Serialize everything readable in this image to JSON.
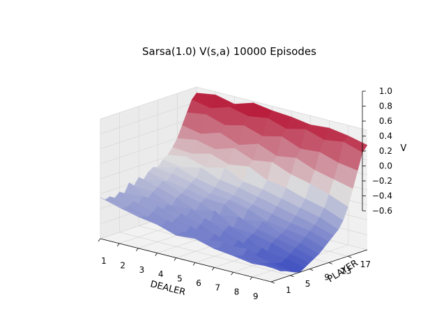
{
  "chart_data": {
    "type": "surface3d",
    "title": "Sarsa(1.0) V(s,a) 10000 Episodes",
    "xlabel": "DEALER",
    "ylabel": "PLAYER",
    "zlabel": "V",
    "x_ticks": [
      "1",
      "2",
      "3",
      "4",
      "5",
      "6",
      "7",
      "8",
      "9"
    ],
    "y_ticks": [
      "1",
      "5",
      "9",
      "13",
      "17"
    ],
    "z_ticks": [
      "−0.6",
      "−0.4",
      "−0.2",
      "0.0",
      "0.2",
      "0.4",
      "0.6",
      "0.8",
      "1.0"
    ],
    "xlim": [
      1,
      10
    ],
    "ylim": [
      1,
      21
    ],
    "zlim": [
      -0.6,
      1.0
    ],
    "grid": true,
    "colormap": "coolwarm",
    "colors": {
      "low": "#3b4cc0",
      "mid": "#dddddd",
      "high": "#b40426",
      "pane": "#f2f2f2",
      "grid": "#d9d9d9"
    },
    "dealer": [
      1,
      2,
      3,
      4,
      5,
      6,
      7,
      8,
      9,
      10
    ],
    "player": [
      1,
      2,
      3,
      4,
      5,
      6,
      7,
      8,
      9,
      10,
      11,
      12,
      13,
      14,
      15,
      16,
      17,
      18,
      19,
      20,
      21
    ],
    "values": [
      [
        -0.05,
        -0.12,
        -0.18,
        -0.22,
        -0.3,
        -0.28,
        -0.35,
        -0.38,
        -0.42,
        -0.4
      ],
      [
        -0.1,
        -0.15,
        -0.2,
        -0.25,
        -0.28,
        -0.32,
        -0.36,
        -0.4,
        -0.44,
        -0.45
      ],
      [
        -0.08,
        -0.14,
        -0.22,
        -0.2,
        -0.3,
        -0.34,
        -0.3,
        -0.42,
        -0.46,
        -0.5
      ],
      [
        -0.12,
        -0.1,
        -0.18,
        -0.26,
        -0.24,
        -0.36,
        -0.38,
        -0.35,
        -0.48,
        -0.52
      ],
      [
        -0.06,
        -0.16,
        -0.12,
        -0.22,
        -0.32,
        -0.3,
        -0.4,
        -0.44,
        -0.5,
        -0.55
      ],
      [
        -0.1,
        -0.08,
        -0.2,
        -0.18,
        -0.26,
        -0.38,
        -0.34,
        -0.46,
        -0.52,
        -0.58
      ],
      [
        0.02,
        -0.12,
        -0.14,
        -0.24,
        -0.2,
        -0.3,
        -0.42,
        -0.4,
        -0.54,
        -0.6
      ],
      [
        -0.04,
        -0.06,
        -0.18,
        -0.16,
        -0.28,
        -0.26,
        -0.36,
        -0.48,
        -0.5,
        -0.56
      ],
      [
        0.05,
        -0.02,
        -0.1,
        -0.2,
        -0.14,
        -0.3,
        -0.32,
        -0.38,
        -0.46,
        -0.52
      ],
      [
        0.0,
        0.04,
        -0.06,
        -0.12,
        -0.22,
        -0.18,
        -0.28,
        -0.34,
        -0.4,
        -0.48
      ],
      [
        0.08,
        0.02,
        -0.02,
        -0.08,
        -0.1,
        -0.24,
        -0.2,
        -0.3,
        -0.36,
        -0.44
      ],
      [
        0.12,
        0.1,
        0.04,
        -0.04,
        -0.06,
        -0.12,
        -0.22,
        -0.26,
        -0.3,
        -0.38
      ],
      [
        0.1,
        0.16,
        0.08,
        0.02,
        -0.02,
        -0.08,
        -0.14,
        -0.2,
        -0.24,
        -0.32
      ],
      [
        0.18,
        0.14,
        0.2,
        0.1,
        0.06,
        0.0,
        -0.06,
        -0.12,
        -0.18,
        -0.26
      ],
      [
        0.22,
        0.26,
        0.18,
        0.24,
        0.12,
        0.08,
        0.02,
        -0.04,
        -0.1,
        -0.2
      ],
      [
        0.3,
        0.28,
        0.34,
        0.26,
        0.3,
        0.18,
        0.14,
        0.06,
        0.0,
        -0.1
      ],
      [
        0.4,
        0.44,
        0.38,
        0.46,
        0.36,
        0.4,
        0.3,
        0.24,
        0.16,
        0.06
      ],
      [
        0.55,
        0.5,
        0.58,
        0.48,
        0.56,
        0.46,
        0.5,
        0.4,
        0.34,
        0.28
      ],
      [
        0.7,
        0.74,
        0.66,
        0.72,
        0.64,
        0.7,
        0.6,
        0.62,
        0.54,
        0.5
      ],
      [
        0.85,
        0.8,
        0.88,
        0.82,
        0.86,
        0.78,
        0.84,
        0.76,
        0.8,
        0.72
      ],
      [
        0.92,
        0.96,
        0.9,
        0.98,
        0.94,
        0.92,
        0.88,
        0.9,
        0.86,
        0.8
      ]
    ]
  }
}
